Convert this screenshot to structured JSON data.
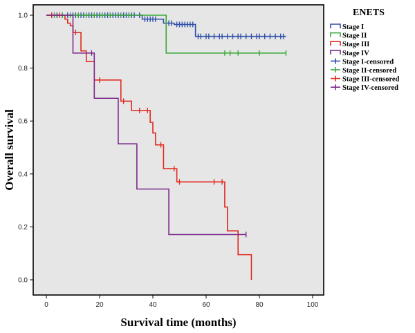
{
  "chart_data": {
    "type": "line",
    "subtype": "kaplan-meier",
    "title": "",
    "xlabel": "Survival time (months)",
    "ylabel": "Overall survival",
    "xlim": [
      0,
      100
    ],
    "ylim": [
      0.0,
      1.0
    ],
    "xticks": [
      "0",
      "20",
      "40",
      "60",
      "80",
      "100"
    ],
    "yticks": [
      "0.0",
      "0.2",
      "0.4",
      "0.6",
      "0.8",
      "1.0"
    ],
    "grid": false,
    "background": "#e6e6e6",
    "legend": {
      "title": "ENETS",
      "position": "right",
      "entries": [
        {
          "label": "Stage I",
          "color": "#2f4fa8",
          "kind": "line"
        },
        {
          "label": "Stage II",
          "color": "#3aa83a",
          "kind": "line"
        },
        {
          "label": "Stage III",
          "color": "#e02a1e",
          "kind": "line"
        },
        {
          "label": "Stage IV",
          "color": "#7b2a8c",
          "kind": "line"
        },
        {
          "label": "Stage I-censored",
          "color": "#2f4fa8",
          "kind": "censor"
        },
        {
          "label": "Stage II-censored",
          "color": "#3aa83a",
          "kind": "censor"
        },
        {
          "label": "Stage III-censored",
          "color": "#e02a1e",
          "kind": "censor"
        },
        {
          "label": "Stage IV-censored",
          "color": "#7b2a8c",
          "kind": "censor"
        }
      ]
    },
    "series": [
      {
        "name": "Stage I",
        "color": "#2f4fa8",
        "steps": [
          [
            0,
            1.0
          ],
          [
            36,
            0.985
          ],
          [
            44,
            0.97
          ],
          [
            48,
            0.965
          ],
          [
            56,
            0.92
          ],
          [
            90,
            0.92
          ]
        ],
        "censored": [
          [
            2,
            1.0
          ],
          [
            4,
            1.0
          ],
          [
            6,
            1.0
          ],
          [
            8,
            1.0
          ],
          [
            10,
            1.0
          ],
          [
            11,
            1.0
          ],
          [
            12,
            1.0
          ],
          [
            13,
            1.0
          ],
          [
            14,
            1.0
          ],
          [
            15,
            1.0
          ],
          [
            16,
            1.0
          ],
          [
            17,
            1.0
          ],
          [
            18,
            1.0
          ],
          [
            19,
            1.0
          ],
          [
            20,
            1.0
          ],
          [
            21,
            1.0
          ],
          [
            22,
            1.0
          ],
          [
            23,
            1.0
          ],
          [
            24,
            1.0
          ],
          [
            25,
            1.0
          ],
          [
            26,
            1.0
          ],
          [
            27,
            1.0
          ],
          [
            28,
            1.0
          ],
          [
            29,
            1.0
          ],
          [
            30,
            1.0
          ],
          [
            31,
            1.0
          ],
          [
            32,
            1.0
          ],
          [
            33,
            1.0
          ],
          [
            35,
            1.0
          ],
          [
            37,
            0.985
          ],
          [
            38,
            0.985
          ],
          [
            39,
            0.985
          ],
          [
            40,
            0.985
          ],
          [
            41,
            0.985
          ],
          [
            45,
            0.97
          ],
          [
            46,
            0.97
          ],
          [
            47,
            0.97
          ],
          [
            49,
            0.965
          ],
          [
            50,
            0.965
          ],
          [
            51,
            0.965
          ],
          [
            52,
            0.965
          ],
          [
            53,
            0.965
          ],
          [
            54,
            0.965
          ],
          [
            55,
            0.965
          ],
          [
            57,
            0.92
          ],
          [
            58,
            0.92
          ],
          [
            60,
            0.92
          ],
          [
            61,
            0.92
          ],
          [
            63,
            0.92
          ],
          [
            65,
            0.92
          ],
          [
            66,
            0.92
          ],
          [
            68,
            0.92
          ],
          [
            70,
            0.92
          ],
          [
            72,
            0.92
          ],
          [
            73,
            0.92
          ],
          [
            75,
            0.92
          ],
          [
            77,
            0.92
          ],
          [
            79,
            0.92
          ],
          [
            80,
            0.92
          ],
          [
            82,
            0.92
          ],
          [
            84,
            0.92
          ],
          [
            86,
            0.92
          ],
          [
            88,
            0.92
          ],
          [
            89,
            0.92
          ]
        ]
      },
      {
        "name": "Stage II",
        "color": "#3aa83a",
        "steps": [
          [
            0,
            1.0
          ],
          [
            45,
            0.857
          ],
          [
            90,
            0.857
          ]
        ],
        "censored": [
          [
            3,
            1.0
          ],
          [
            6,
            1.0
          ],
          [
            9,
            1.0
          ],
          [
            12,
            1.0
          ],
          [
            15,
            1.0
          ],
          [
            18,
            1.0
          ],
          [
            21,
            1.0
          ],
          [
            24,
            1.0
          ],
          [
            28,
            1.0
          ],
          [
            31,
            1.0
          ],
          [
            67,
            0.857
          ],
          [
            69,
            0.857
          ],
          [
            72,
            0.857
          ],
          [
            80,
            0.857
          ],
          [
            90,
            0.857
          ]
        ]
      },
      {
        "name": "Stage III",
        "color": "#e02a1e",
        "steps": [
          [
            0,
            1.0
          ],
          [
            7,
            0.985
          ],
          [
            8,
            0.97
          ],
          [
            9,
            0.96
          ],
          [
            10,
            0.935
          ],
          [
            13,
            0.865
          ],
          [
            15,
            0.825
          ],
          [
            18,
            0.755
          ],
          [
            28,
            0.675
          ],
          [
            32,
            0.64
          ],
          [
            39,
            0.595
          ],
          [
            40,
            0.555
          ],
          [
            41,
            0.51
          ],
          [
            44,
            0.42
          ],
          [
            49,
            0.37
          ],
          [
            67,
            0.275
          ],
          [
            68,
            0.185
          ],
          [
            72,
            0.095
          ],
          [
            77,
            0.0
          ]
        ],
        "censored": [
          [
            2,
            1.0
          ],
          [
            5,
            1.0
          ],
          [
            11,
            0.935
          ],
          [
            20,
            0.755
          ],
          [
            29,
            0.675
          ],
          [
            35,
            0.64
          ],
          [
            38,
            0.64
          ],
          [
            43,
            0.51
          ],
          [
            48,
            0.42
          ],
          [
            50,
            0.37
          ],
          [
            63,
            0.37
          ],
          [
            66,
            0.37
          ]
        ]
      },
      {
        "name": "Stage IV",
        "color": "#7b2a8c",
        "steps": [
          [
            0,
            1.0
          ],
          [
            10,
            0.857
          ],
          [
            18,
            0.686
          ],
          [
            27,
            0.514
          ],
          [
            34,
            0.343
          ],
          [
            46,
            0.171
          ],
          [
            75,
            0.171
          ]
        ],
        "censored": [
          [
            17,
            0.857
          ],
          [
            75,
            0.171
          ]
        ]
      }
    ]
  }
}
